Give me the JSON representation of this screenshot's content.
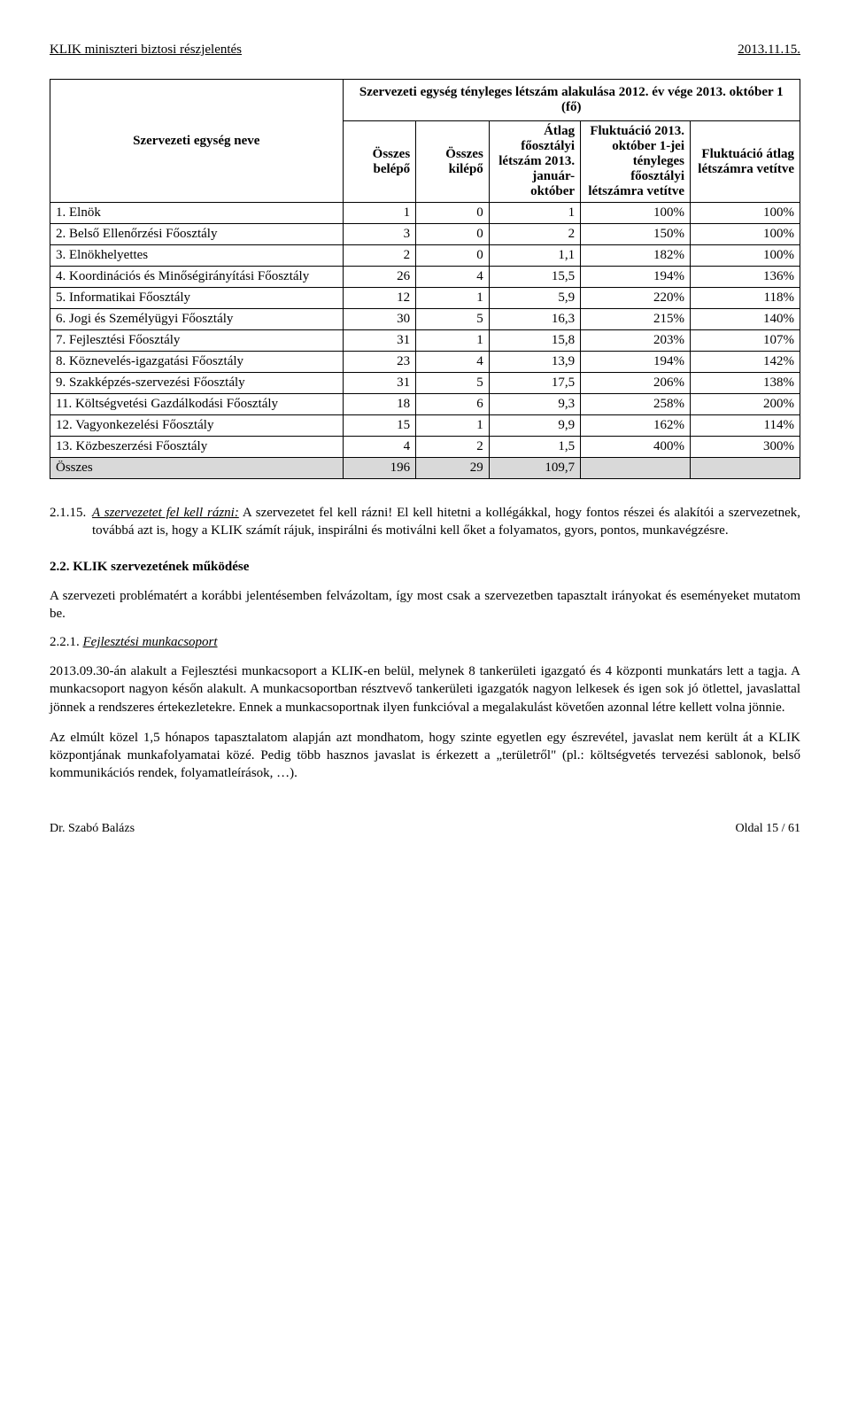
{
  "header": {
    "left": "KLIK miniszteri biztosi részjelentés",
    "right": "2013.11.15."
  },
  "table": {
    "type": "table",
    "caption": "Szervezeti egység tényleges létszám alakulása 2012. év vége 2013. október 1 (fő)",
    "columns": [
      "Szervezeti egység neve",
      "Összes belépő",
      "Összes kilépő",
      "Átlag főosztályi létszám 2013. január-október",
      "Fluktuáció 2013. október 1-jei tényleges főosztályi létszámra vetítve",
      "Fluktuáció átlag létszámra vetítve"
    ],
    "column_align": [
      "left",
      "right",
      "right",
      "right",
      "right",
      "right"
    ],
    "header_bg": "#ffffff",
    "border_color": "#000000",
    "sum_row_bg": "#d9d9d9",
    "font_family": "Times New Roman",
    "font_size_pt": 11,
    "rows": [
      [
        "1. Elnök",
        "1",
        "0",
        "1",
        "100%",
        "100%"
      ],
      [
        "2. Belső Ellenőrzési Főosztály",
        "3",
        "0",
        "2",
        "150%",
        "100%"
      ],
      [
        "3. Elnökhelyettes",
        "2",
        "0",
        "1,1",
        "182%",
        "100%"
      ],
      [
        "4. Koordinációs és Minőségirányítási Főosztály",
        "26",
        "4",
        "15,5",
        "194%",
        "136%"
      ],
      [
        "5. Informatikai Főosztály",
        "12",
        "1",
        "5,9",
        "220%",
        "118%"
      ],
      [
        "6. Jogi és Személyügyi Főosztály",
        "30",
        "5",
        "16,3",
        "215%",
        "140%"
      ],
      [
        "7. Fejlesztési Főosztály",
        "31",
        "1",
        "15,8",
        "203%",
        "107%"
      ],
      [
        "8. Köznevelés-igazgatási Főosztály",
        "23",
        "4",
        "13,9",
        "194%",
        "142%"
      ],
      [
        "9. Szakképzés-szervezési Főosztály",
        "31",
        "5",
        "17,5",
        "206%",
        "138%"
      ],
      [
        "11. Költségvetési Gazdálkodási Főosztály",
        "18",
        "6",
        "9,3",
        "258%",
        "200%"
      ],
      [
        "12. Vagyonkezelési Főosztály",
        "15",
        "1",
        "9,9",
        "162%",
        "114%"
      ],
      [
        "13. Közbeszerzési Főosztály",
        "4",
        "2",
        "1,5",
        "400%",
        "300%"
      ]
    ],
    "sum_row": [
      "Összes",
      "196",
      "29",
      "109,7",
      "",
      ""
    ]
  },
  "paragraphs": {
    "p2115_prefix": "2.1.15.",
    "p2115_lead_underline": "A szervezetet fel kell rázni:",
    "p2115_rest": " A szervezetet fel kell rázni! El kell hitetni a kollégákkal, hogy fontos részei és alakítói a szervezetnek, továbbá azt is, hogy a KLIK számít rájuk, inspirálni és motiválni kell őket a folyamatos, gyors, pontos, munkavégzésre.",
    "section22_num": "2.2.",
    "section22_title": " KLIK szervezetének működése",
    "section22_intro": "A szervezeti problématért a korábbi jelentésemben felvázoltam, így most csak a szervezetben tapasztalt irányokat és eseményeket mutatom be.",
    "sub221_num": "2.2.1.",
    "sub221_title": "Fejlesztési munkacsoport",
    "sub221_p1": "2013.09.30-án alakult a Fejlesztési munkacsoport a KLIK-en belül, melynek 8 tankerületi igazgató és 4 központi munkatárs lett a tagja. A munkacsoport nagyon későn alakult. A munkacsoportban résztvevő tankerületi igazgatók nagyon lelkesek és igen sok jó ötlettel, javaslattal jönnek a rendszeres értekezletekre. Ennek a munkacsoportnak ilyen funkcióval a megalakulást követően azonnal létre kellett volna jönnie.",
    "sub221_p2": "Az elmúlt közel 1,5 hónapos tapasztalatom alapján azt mondhatom, hogy szinte egyetlen egy észrevétel, javaslat nem került át a KLIK központjának munkafolyamatai közé. Pedig több hasznos javaslat is érkezett a „területről\" (pl.: költségvetés tervezési sablonok, belső kommunikációs rendek, folyamatleírások, …)."
  },
  "footer": {
    "left": "Dr. Szabó Balázs",
    "right": "Oldal 15 / 61"
  },
  "colors": {
    "text": "#000000",
    "background": "#ffffff",
    "table_border": "#000000",
    "sum_row_bg": "#d9d9d9"
  }
}
